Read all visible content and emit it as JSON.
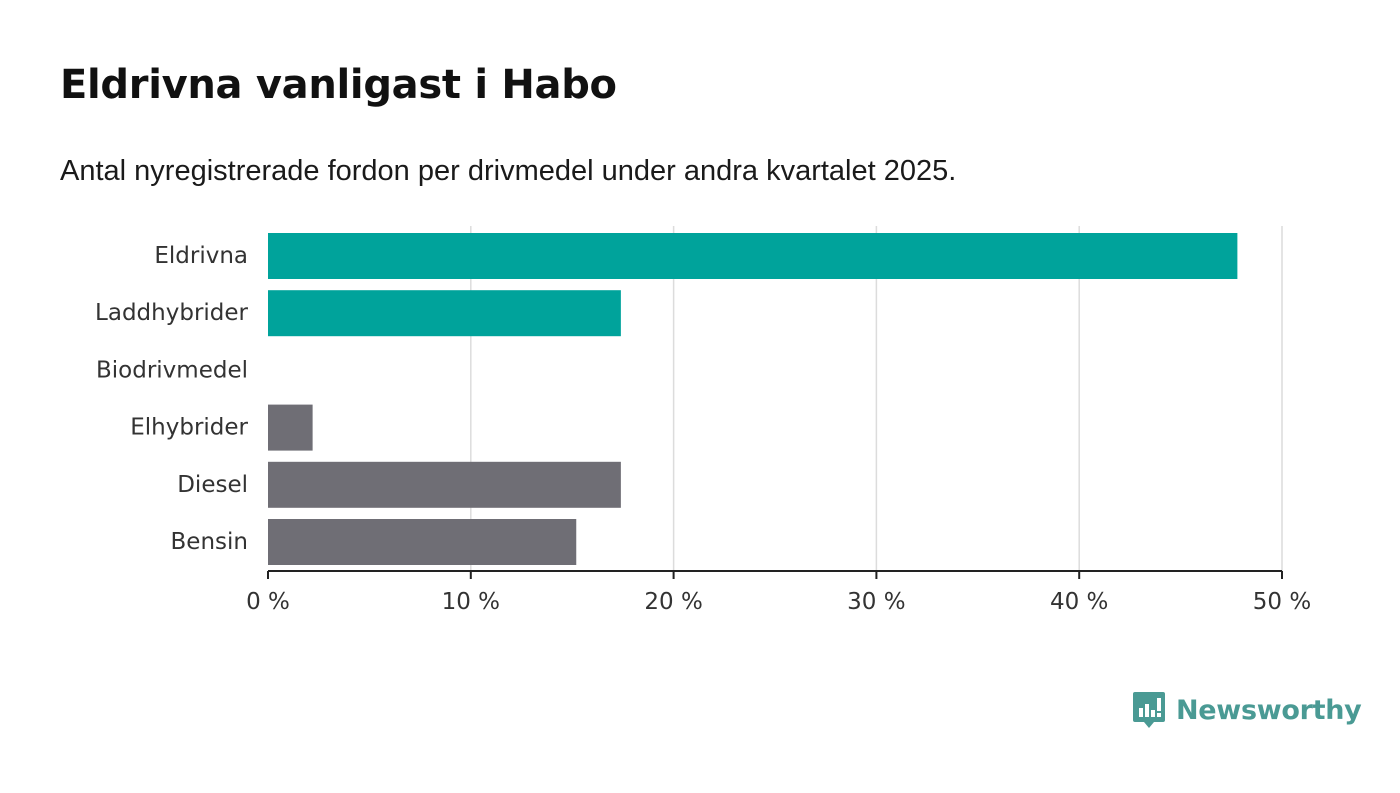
{
  "title": "Eldrivna vanligast i Habo",
  "subtitle": "Antal nyregistrerade fordon per drivmedel under andra kvartalet 2025.",
  "brand": "Newsworthy",
  "colors": {
    "highlight": "#00a39b",
    "default": "#6f6e75",
    "grid": "#dcdcdc",
    "axis": "#222222",
    "brand": "#4a9a94"
  },
  "chart_data": {
    "type": "bar",
    "orientation": "horizontal",
    "categories": [
      "Eldrivna",
      "Laddhybrider",
      "Biodrivmedel",
      "Elhybrider",
      "Diesel",
      "Bensin"
    ],
    "values": [
      47.8,
      17.4,
      0,
      2.2,
      17.4,
      15.2
    ],
    "highlighted": [
      true,
      true,
      false,
      false,
      false,
      false
    ],
    "xlim": [
      0,
      50
    ],
    "xticks": [
      0,
      10,
      20,
      30,
      40,
      50
    ],
    "xtick_labels": [
      "0 %",
      "10 %",
      "20 %",
      "30 %",
      "40 %",
      "50 %"
    ],
    "grid": true,
    "legend": "none"
  }
}
